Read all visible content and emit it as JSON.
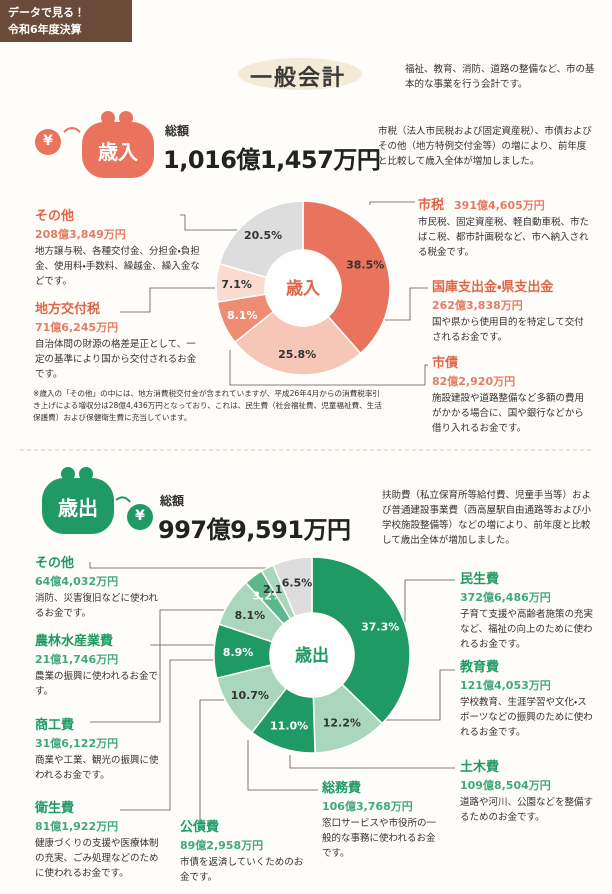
{
  "header": {
    "badge": [
      "データで見る！",
      "令和6年度決算"
    ],
    "title": "一般会計",
    "description": "福祉、教育、消防、道路の整備など、市の基本的な事業を行う会計です。"
  },
  "revenue": {
    "currency": "¥",
    "label": "歳入",
    "total_label": "総額",
    "total": "1,016億1,457万円",
    "summary": "市税（法人市民税および固定資産税）、市債およびその他（地方特例交付金等）の増により、前年度と比較して歳入全体が増加しました。",
    "note": "※歳入の「その他」の中には、地方消費税交付金が含まれていますが、平成26年4月からの消費税率引き上げによる増収分は28億4,436万円となっており、これは、民生費（社会福祉費、児童福祉費、生活保護費）および保健衛生費に充当しています。"
  },
  "expenditure": {
    "currency": "¥",
    "label": "歳出",
    "total_label": "総額",
    "total": "997億9,591万円",
    "summary": "扶助費（私立保育所等給付費、児童手当等）および普通建設事業費（西高屋駅自由通路等および小学校施設整備等）などの増により、前年度と比較して歳出全体が増加しました。"
  },
  "chart_data": [
    {
      "type": "pie",
      "center_label": "歳入",
      "color": "#e0664a",
      "categories": [
        "市税",
        "国庫支出金・県支出金",
        "市債",
        "地方交付税",
        "その他"
      ],
      "values": [
        38.5,
        25.8,
        8.1,
        7.1,
        20.5
      ],
      "value_labels": [
        "38.5%",
        "25.8%",
        "8.1%",
        "7.1%",
        "20.5%"
      ],
      "colors": [
        "#e9735c",
        "#f6c7b6",
        "#ee8d74",
        "#f9dccf",
        "#dddddd"
      ],
      "amounts": [
        "391億4,605万円",
        "262億3,838万円",
        "82億2,920万円",
        "71億6,245万円",
        "208億3,849万円"
      ],
      "notes": [
        "市民税、固定資産税、軽自動車税、市たばこ税、都市計画税など、市へ納入される税金です。",
        "国や県から使用目的を特定して交付されるお金です。",
        "施設建設や道路整備など多額の費用がかかる場合に、国や銀行などから借り入れるお金です。",
        "自治体間の財源の格差是正として、一定の基準により国から交付されるお金です。",
        "地方譲与税、各種交付金、分担金・負担金、使用料・手数料、繰越金、繰入金などです。"
      ]
    },
    {
      "type": "pie",
      "center_label": "歳出",
      "color": "#1f9a64",
      "categories": [
        "民生費",
        "教育費",
        "土木費",
        "総務費",
        "公債費",
        "衛生費",
        "商工費",
        "農林水産業費",
        "その他"
      ],
      "values": [
        37.3,
        12.2,
        11.0,
        10.7,
        8.9,
        8.1,
        3.2,
        2.1,
        6.5
      ],
      "value_labels": [
        "37.3%",
        "12.2%",
        "11.0%",
        "10.7%",
        "8.9%",
        "8.1%",
        "3.2%",
        "2.1%",
        "6.5%"
      ],
      "colors": [
        "#1f9a64",
        "#a9d6bd",
        "#1f9a64",
        "#a9d6bd",
        "#1f9a64",
        "#a9d6bd",
        "#5cb88a",
        "#a9d6bd",
        "#dddddd"
      ],
      "amounts": [
        "372億6,486万円",
        "121億4,053万円",
        "109億8,504万円",
        "106億3,768万円",
        "89億2,958万円",
        "81億1,922万円",
        "31億6,122万円",
        "21億1,746万円",
        "64億4,032万円"
      ],
      "notes": [
        "子育て支援や高齢者施策の充実など、福祉の向上のために使われるお金です。",
        "学校教育、生涯学習や文化・スポーツなどの振興のために使われるお金です。",
        "道路や河川、公園などを整備するためのお金です。",
        "窓口サービスや市役所の一般的な事務に使われるお金です。",
        "市債を返済していくためのお金です。",
        "健康づくりの支援や医療体制の充実、ごみ処理などのために使われるお金です。",
        "商業や工業、観光の振興に使われるお金です。",
        "農業の振興に使われるお金です。",
        "消防、災害復旧などに使われるお金です。"
      ]
    }
  ]
}
